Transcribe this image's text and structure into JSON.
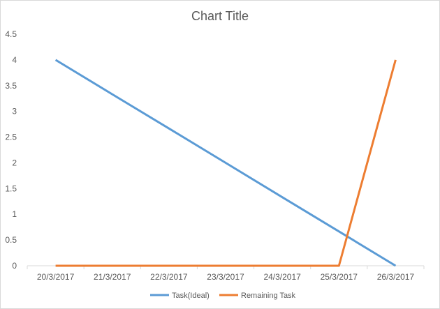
{
  "chart_data": {
    "type": "line",
    "title": "Chart Title",
    "categories": [
      "20/3/2017",
      "21/3/2017",
      "22/3/2017",
      "23/3/2017",
      "24/3/2017",
      "25/3/2017",
      "26/3/2017"
    ],
    "ylim": [
      0,
      4.5
    ],
    "yticks": [
      "0",
      "0.5",
      "1",
      "1.5",
      "2",
      "2.5",
      "3",
      "3.5",
      "4",
      "4.5"
    ],
    "grid": false,
    "legend": "bottom",
    "series": [
      {
        "name": "Task(Ideal)",
        "color": "#5b9bd5",
        "values": [
          4,
          3.333,
          2.667,
          2,
          1.333,
          0.667,
          0
        ]
      },
      {
        "name": "Remaining Task",
        "color": "#ed7d31",
        "values": [
          0,
          0,
          0,
          0,
          0,
          0,
          4
        ]
      }
    ]
  }
}
